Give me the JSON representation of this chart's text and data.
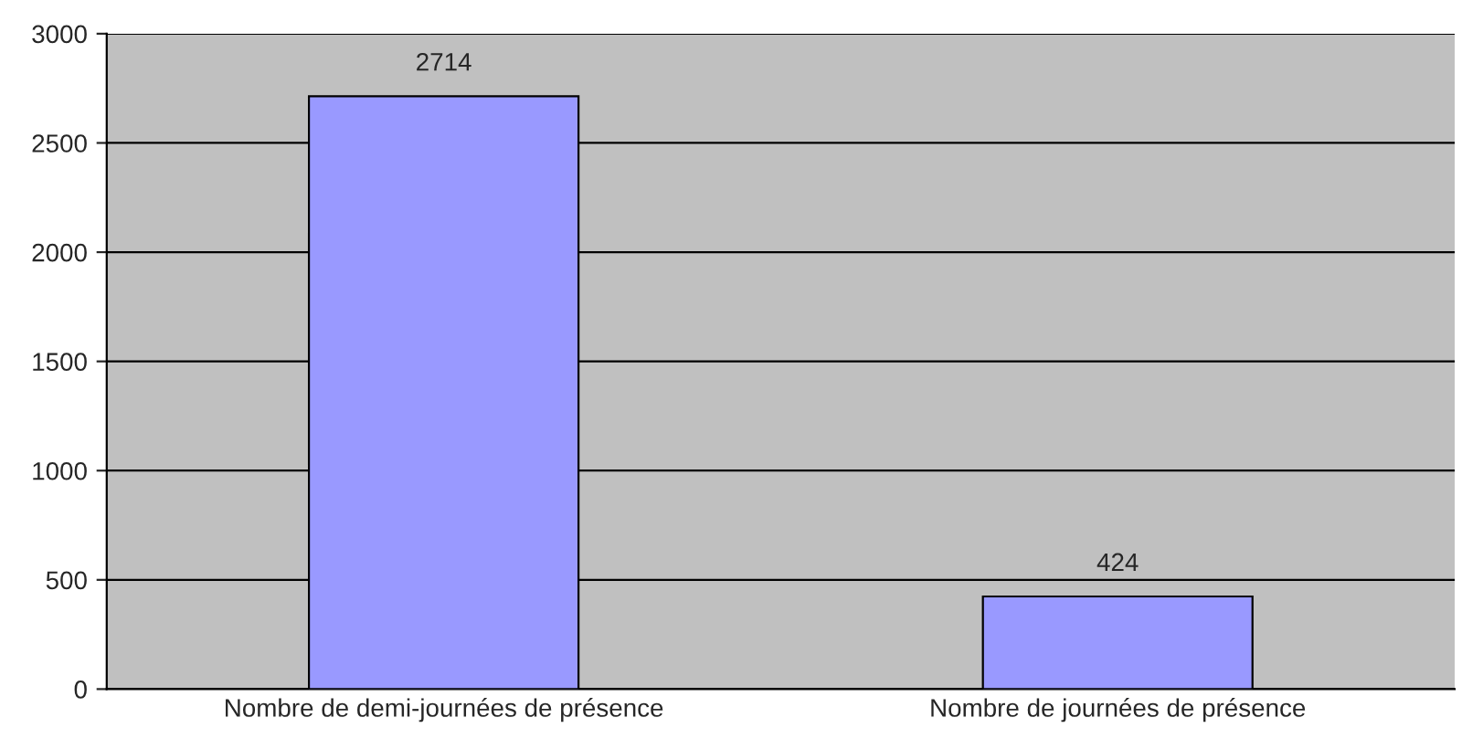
{
  "chart_data": {
    "type": "bar",
    "categories": [
      "Nombre de demi-journées de présence",
      "Nombre de journées de présence"
    ],
    "values": [
      2714,
      424
    ],
    "color": "#9999ff",
    "ylim": [
      0,
      3000
    ],
    "yticks": [
      0,
      500,
      1000,
      1500,
      2000,
      2500,
      3000
    ],
    "grid": "y",
    "data_labels": true
  }
}
